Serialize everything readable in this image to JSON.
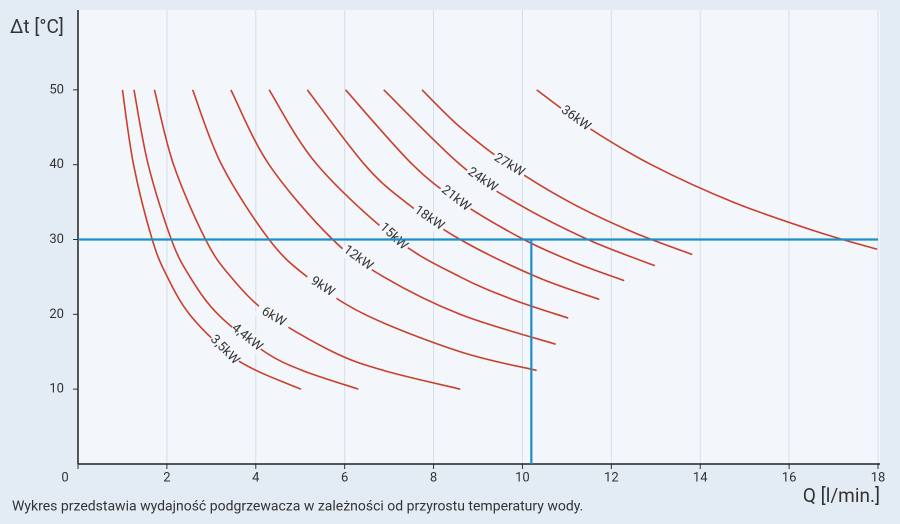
{
  "chart_data": {
    "type": "line",
    "y_label": "Δt [°C]",
    "x_label": "Q [l/min.]",
    "caption": "Wykres przedstawia wydajność podgrzewacza w zależności od przyrostu temperatury wody.",
    "xlim": [
      0,
      18
    ],
    "ylim": [
      0,
      60
    ],
    "xticks": [
      0,
      2,
      4,
      6,
      8,
      10,
      12,
      14,
      16,
      18
    ],
    "yticks": [
      10,
      20,
      30,
      40,
      50
    ],
    "grid": true,
    "color": "#c9402d",
    "reference_color": "#1b8fc6",
    "reference_y": 30,
    "reference_x": 10.2,
    "series": [
      {
        "name": "3,5kW",
        "x": [
          1.0,
          1.25,
          1.67,
          2.01,
          2.51,
          3.34,
          4.01,
          5.02
        ],
        "values": [
          50,
          40,
          30,
          25,
          20,
          15,
          12.5,
          10
        ]
      },
      {
        "name": "4,4kW",
        "x": [
          1.26,
          1.58,
          2.1,
          2.52,
          3.15,
          4.2,
          5.05,
          6.31
        ],
        "values": [
          50,
          40,
          30,
          25,
          20,
          15,
          12.5,
          10
        ]
      },
      {
        "name": "6kW",
        "x": [
          1.72,
          2.15,
          2.87,
          3.44,
          4.3,
          5.73,
          6.88,
          8.6
        ],
        "values": [
          50,
          40,
          30,
          25,
          20,
          15,
          12.5,
          10
        ]
      },
      {
        "name": "9kW",
        "x": [
          2.58,
          3.23,
          4.3,
          5.16,
          6.45,
          8.6,
          10.32
        ],
        "values": [
          50,
          40,
          30,
          25,
          20,
          15,
          12.5
        ]
      },
      {
        "name": "12kW",
        "x": [
          3.44,
          4.3,
          5.73,
          6.88,
          8.6,
          10.75
        ],
        "values": [
          50,
          40,
          30,
          25,
          20,
          16
        ]
      },
      {
        "name": "15kW",
        "x": [
          4.3,
          5.38,
          7.17,
          8.6,
          9.77,
          11.03
        ],
        "values": [
          50,
          40,
          30,
          25,
          22,
          19.5
        ]
      },
      {
        "name": "18kW",
        "x": [
          5.16,
          6.45,
          7.37,
          8.6,
          10.32,
          11.73
        ],
        "values": [
          50,
          40,
          35,
          30,
          25,
          22
        ]
      },
      {
        "name": "21kW",
        "x": [
          6.02,
          7.53,
          8.6,
          10.03,
          11.15,
          12.29
        ],
        "values": [
          50,
          40,
          35,
          30,
          27,
          24.5
        ]
      },
      {
        "name": "24kW",
        "x": [
          6.88,
          8.6,
          9.83,
          11.47,
          12.98
        ],
        "values": [
          50,
          40,
          35,
          30,
          26.5
        ]
      },
      {
        "name": "27kW",
        "x": [
          7.74,
          8.6,
          9.68,
          11.06,
          12.48,
          13.82
        ],
        "values": [
          50,
          45,
          40,
          35,
          31,
          28
        ]
      },
      {
        "name": "36kW",
        "x": [
          10.32,
          11.47,
          12.9,
          14.74,
          16.65,
          17.98
        ],
        "values": [
          50,
          45,
          40,
          35,
          31,
          28.7
        ]
      }
    ]
  }
}
